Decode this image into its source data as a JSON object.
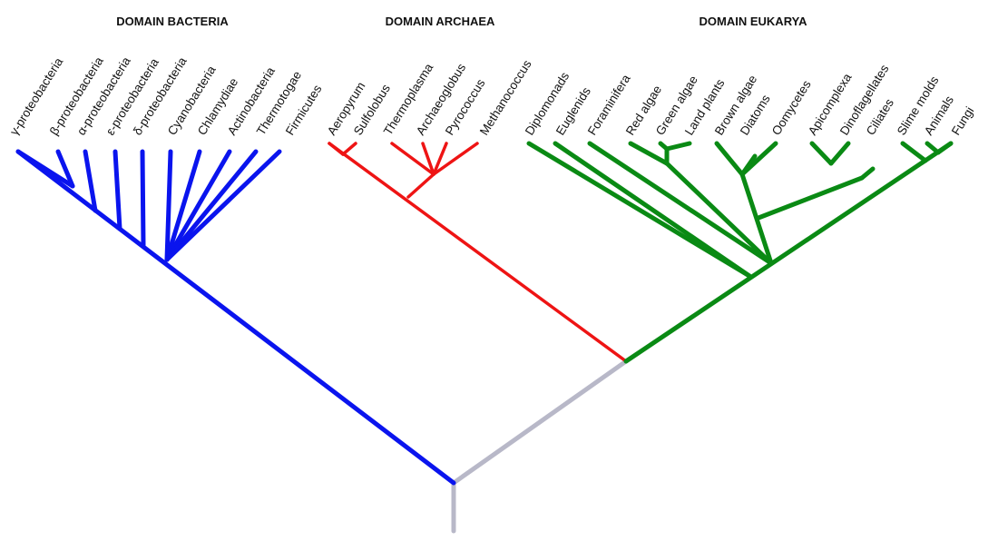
{
  "domains": {
    "bacteria": {
      "title": "DOMAIN BACTERIA",
      "color": "#0a14ee",
      "taxa": [
        "γ-proteobacteria",
        "β-proteobacteria",
        "α-proteobacteria",
        "ε-proteobacteria",
        "δ-proteobacteria",
        "Cyanobacteria",
        "Chlamydiae",
        "Actinobacteria",
        "Thermotogae",
        "Firmicutes"
      ]
    },
    "archaea": {
      "title": "DOMAIN ARCHAEA",
      "color": "#ee1414",
      "taxa": [
        "Aeropyrum",
        "Sulfolobus",
        "Thermoplasma",
        "Archaeoglobus",
        "Pyrococcus",
        "Methanococcus"
      ]
    },
    "eukarya": {
      "title": "DOMAIN EUKARYA",
      "color": "#0a8a14",
      "taxa": [
        "Diplomonads",
        "Euglenids",
        "Foraminifera",
        "Red algae",
        "Green algae",
        "Land plants",
        "Brown algae",
        "Diatoms",
        "Oomycetes",
        "Apicomplexa",
        "Dinoflagellates",
        "Ciliates",
        "Slime molds",
        "Animals",
        "Fungi"
      ]
    }
  },
  "root_color": "#b8b8c8"
}
